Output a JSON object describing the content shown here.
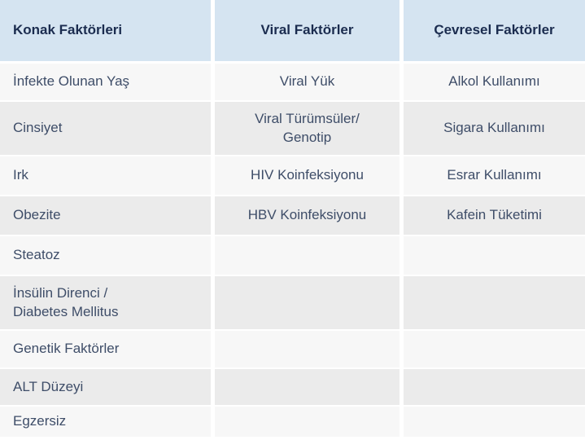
{
  "colors": {
    "header_bg": "#d5e4f1",
    "header_text": "#1b2c4f",
    "row_light": "#f7f7f7",
    "row_dark": "#ebebeb",
    "body_text": "#3e4d68",
    "gap": "#ffffff"
  },
  "table": {
    "headers": [
      "Konak Faktörleri",
      "Viral Faktörler",
      "Çevresel Faktörler"
    ],
    "rows": [
      {
        "cells": [
          "İnfekte Olunan Yaş",
          "Viral Yük",
          "Alkol Kullanımı"
        ]
      },
      {
        "cells": [
          "Cinsiyet",
          "Viral Türümsüler/\nGenotip",
          "Sigara Kullanımı"
        ]
      },
      {
        "cells": [
          "Irk",
          "HIV Koinfeksiyonu",
          "Esrar Kullanımı"
        ]
      },
      {
        "cells": [
          "Obezite",
          "HBV Koinfeksiyonu",
          "Kafein Tüketimi"
        ]
      },
      {
        "cells": [
          "Steatoz",
          "",
          ""
        ]
      },
      {
        "cells": [
          "İnsülin Direnci /\nDiabetes Mellitus",
          "",
          ""
        ]
      },
      {
        "cells": [
          "Genetik Faktörler",
          "",
          ""
        ]
      },
      {
        "cells": [
          "ALT Düzeyi",
          "",
          ""
        ]
      },
      {
        "cells": [
          "Egzersiz",
          "",
          ""
        ]
      }
    ]
  }
}
